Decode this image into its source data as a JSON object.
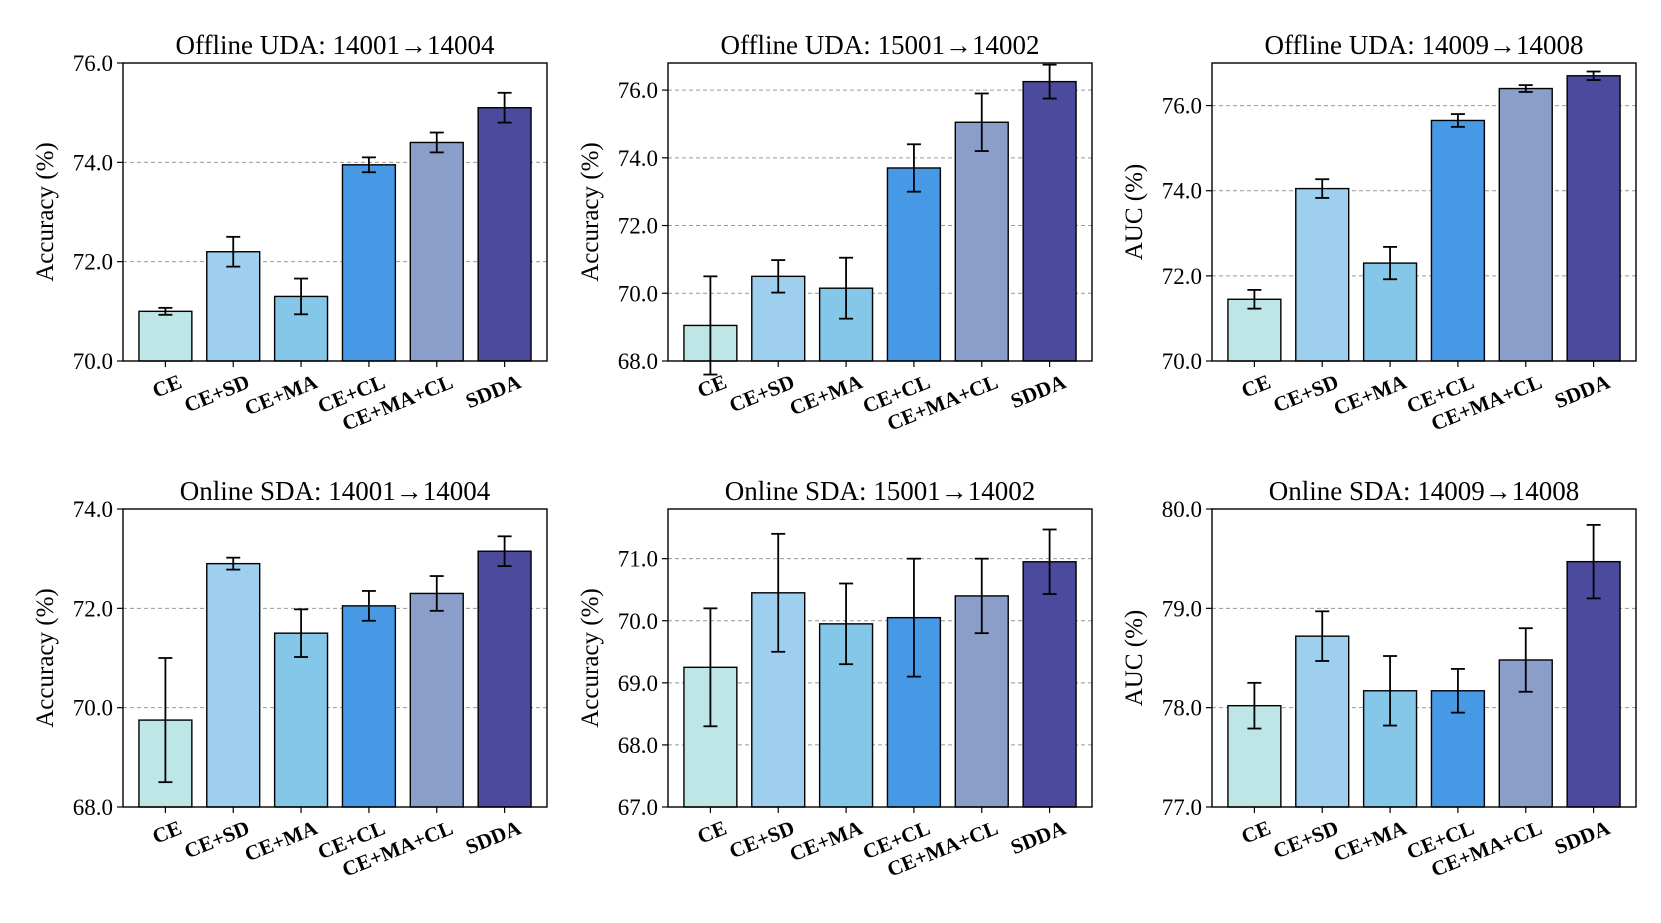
{
  "palette": [
    "#bfe6e6",
    "#9ecfee",
    "#84c7e8",
    "#4899e5",
    "#8b9ec9",
    "#4c4a9c"
  ],
  "chart_data": [
    {
      "type": "bar",
      "title": "Offline UDA: 14001→14004",
      "ylabel": "Accuracy (%)",
      "xlabel": "",
      "categories": [
        "CE",
        "CE+SD",
        "CE+MA",
        "CE+CL",
        "CE+MA+CL",
        "SDDA"
      ],
      "values": [
        71.0,
        72.2,
        71.3,
        73.95,
        74.4,
        75.1
      ],
      "errors": [
        0.07,
        0.3,
        0.36,
        0.15,
        0.2,
        0.3
      ],
      "ylim": [
        70.0,
        76.0
      ],
      "yticks": [
        "70.0",
        "72.0",
        "74.0",
        "76.0"
      ],
      "grid": true
    },
    {
      "type": "bar",
      "title": "Offline UDA: 15001→14002",
      "ylabel": "Accuracy (%)",
      "xlabel": "",
      "categories": [
        "CE",
        "CE+SD",
        "CE+MA",
        "CE+CL",
        "CE+MA+CL",
        "SDDA"
      ],
      "values": [
        69.05,
        70.5,
        70.15,
        73.7,
        75.05,
        76.25
      ],
      "errors": [
        1.45,
        0.48,
        0.9,
        0.7,
        0.85,
        0.5
      ],
      "ylim": [
        68.0,
        76.8
      ],
      "yticks": [
        "68.0",
        "70.0",
        "72.0",
        "74.0",
        "76.0"
      ],
      "grid": true
    },
    {
      "type": "bar",
      "title": "Offline UDA: 14009→14008",
      "ylabel": "AUC (%)",
      "xlabel": "",
      "categories": [
        "CE",
        "CE+SD",
        "CE+MA",
        "CE+CL",
        "CE+MA+CL",
        "SDDA"
      ],
      "values": [
        71.45,
        74.05,
        72.3,
        75.65,
        76.4,
        76.7
      ],
      "errors": [
        0.22,
        0.22,
        0.38,
        0.15,
        0.08,
        0.1
      ],
      "ylim": [
        70.0,
        77.0
      ],
      "yticks": [
        "70.0",
        "72.0",
        "74.0",
        "76.0"
      ],
      "grid": true
    },
    {
      "type": "bar",
      "title": "Online SDA: 14001→14004",
      "ylabel": "Accuracy (%)",
      "xlabel": "",
      "categories": [
        "CE",
        "CE+SD",
        "CE+MA",
        "CE+CL",
        "CE+MA+CL",
        "SDDA"
      ],
      "values": [
        69.75,
        72.9,
        71.5,
        72.05,
        72.3,
        73.15
      ],
      "errors": [
        1.25,
        0.12,
        0.48,
        0.3,
        0.35,
        0.3
      ],
      "ylim": [
        68.0,
        74.0
      ],
      "yticks": [
        "68.0",
        "70.0",
        "72.0",
        "74.0"
      ],
      "grid": true
    },
    {
      "type": "bar",
      "title": "Online SDA: 15001→14002",
      "ylabel": "Accuracy (%)",
      "xlabel": "",
      "categories": [
        "CE",
        "CE+SD",
        "CE+MA",
        "CE+CL",
        "CE+MA+CL",
        "SDDA"
      ],
      "values": [
        69.25,
        70.45,
        69.95,
        70.05,
        70.4,
        70.95
      ],
      "errors": [
        0.95,
        0.95,
        0.65,
        0.95,
        0.6,
        0.52
      ],
      "ylim": [
        67.0,
        71.8
      ],
      "yticks": [
        "67.0",
        "68.0",
        "69.0",
        "70.0",
        "71.0"
      ],
      "grid": true
    },
    {
      "type": "bar",
      "title": "Online SDA: 14009→14008",
      "ylabel": "AUC (%)",
      "xlabel": "",
      "categories": [
        "CE",
        "CE+SD",
        "CE+MA",
        "CE+CL",
        "CE+MA+CL",
        "SDDA"
      ],
      "values": [
        78.02,
        78.72,
        78.17,
        78.17,
        78.48,
        79.47
      ],
      "errors": [
        0.23,
        0.25,
        0.35,
        0.22,
        0.32,
        0.37
      ],
      "ylim": [
        77.0,
        80.0
      ],
      "yticks": [
        "77.0",
        "78.0",
        "79.0",
        "80.0"
      ],
      "grid": true
    }
  ]
}
